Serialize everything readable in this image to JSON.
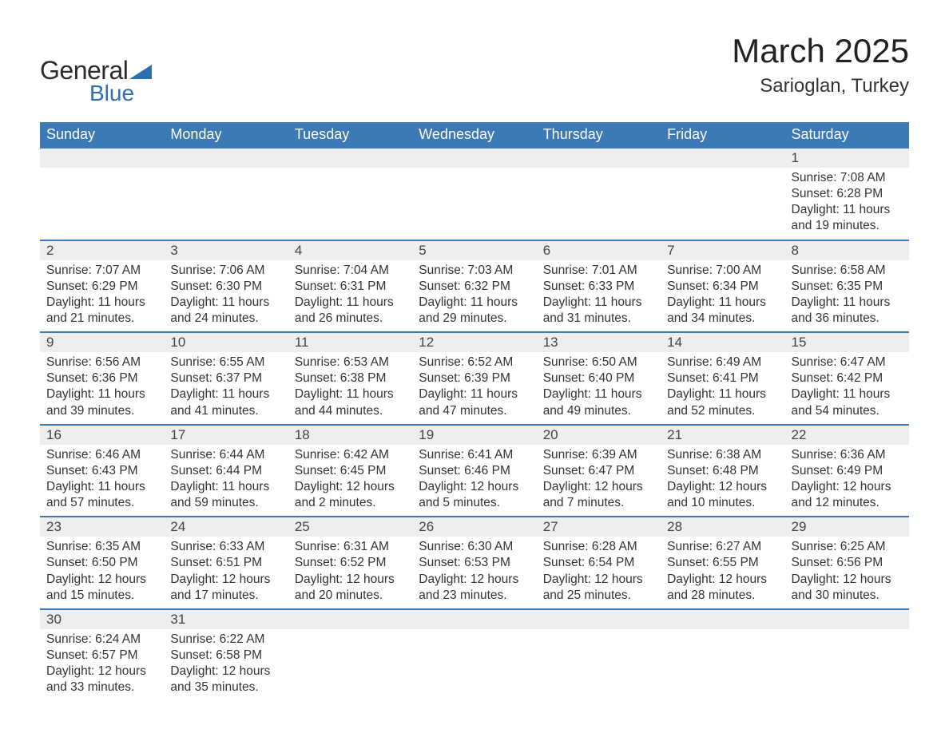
{
  "logo": {
    "text_general": "General",
    "text_blue": "Blue"
  },
  "title": {
    "month": "March 2025",
    "location": "Sarioglan, Turkey"
  },
  "colors": {
    "header_bg": "#3b79b7",
    "header_text": "#ffffff",
    "daynum_bg": "#eeeeee",
    "border": "#3b79b7",
    "text": "#333333",
    "logo_accent": "#2f6faf"
  },
  "daysOfWeek": [
    "Sunday",
    "Monday",
    "Tuesday",
    "Wednesday",
    "Thursday",
    "Friday",
    "Saturday"
  ],
  "weeks": [
    [
      null,
      null,
      null,
      null,
      null,
      null,
      {
        "n": "1",
        "sunrise": "Sunrise: 7:08 AM",
        "sunset": "Sunset: 6:28 PM",
        "dl1": "Daylight: 11 hours",
        "dl2": "and 19 minutes."
      }
    ],
    [
      {
        "n": "2",
        "sunrise": "Sunrise: 7:07 AM",
        "sunset": "Sunset: 6:29 PM",
        "dl1": "Daylight: 11 hours",
        "dl2": "and 21 minutes."
      },
      {
        "n": "3",
        "sunrise": "Sunrise: 7:06 AM",
        "sunset": "Sunset: 6:30 PM",
        "dl1": "Daylight: 11 hours",
        "dl2": "and 24 minutes."
      },
      {
        "n": "4",
        "sunrise": "Sunrise: 7:04 AM",
        "sunset": "Sunset: 6:31 PM",
        "dl1": "Daylight: 11 hours",
        "dl2": "and 26 minutes."
      },
      {
        "n": "5",
        "sunrise": "Sunrise: 7:03 AM",
        "sunset": "Sunset: 6:32 PM",
        "dl1": "Daylight: 11 hours",
        "dl2": "and 29 minutes."
      },
      {
        "n": "6",
        "sunrise": "Sunrise: 7:01 AM",
        "sunset": "Sunset: 6:33 PM",
        "dl1": "Daylight: 11 hours",
        "dl2": "and 31 minutes."
      },
      {
        "n": "7",
        "sunrise": "Sunrise: 7:00 AM",
        "sunset": "Sunset: 6:34 PM",
        "dl1": "Daylight: 11 hours",
        "dl2": "and 34 minutes."
      },
      {
        "n": "8",
        "sunrise": "Sunrise: 6:58 AM",
        "sunset": "Sunset: 6:35 PM",
        "dl1": "Daylight: 11 hours",
        "dl2": "and 36 minutes."
      }
    ],
    [
      {
        "n": "9",
        "sunrise": "Sunrise: 6:56 AM",
        "sunset": "Sunset: 6:36 PM",
        "dl1": "Daylight: 11 hours",
        "dl2": "and 39 minutes."
      },
      {
        "n": "10",
        "sunrise": "Sunrise: 6:55 AM",
        "sunset": "Sunset: 6:37 PM",
        "dl1": "Daylight: 11 hours",
        "dl2": "and 41 minutes."
      },
      {
        "n": "11",
        "sunrise": "Sunrise: 6:53 AM",
        "sunset": "Sunset: 6:38 PM",
        "dl1": "Daylight: 11 hours",
        "dl2": "and 44 minutes."
      },
      {
        "n": "12",
        "sunrise": "Sunrise: 6:52 AM",
        "sunset": "Sunset: 6:39 PM",
        "dl1": "Daylight: 11 hours",
        "dl2": "and 47 minutes."
      },
      {
        "n": "13",
        "sunrise": "Sunrise: 6:50 AM",
        "sunset": "Sunset: 6:40 PM",
        "dl1": "Daylight: 11 hours",
        "dl2": "and 49 minutes."
      },
      {
        "n": "14",
        "sunrise": "Sunrise: 6:49 AM",
        "sunset": "Sunset: 6:41 PM",
        "dl1": "Daylight: 11 hours",
        "dl2": "and 52 minutes."
      },
      {
        "n": "15",
        "sunrise": "Sunrise: 6:47 AM",
        "sunset": "Sunset: 6:42 PM",
        "dl1": "Daylight: 11 hours",
        "dl2": "and 54 minutes."
      }
    ],
    [
      {
        "n": "16",
        "sunrise": "Sunrise: 6:46 AM",
        "sunset": "Sunset: 6:43 PM",
        "dl1": "Daylight: 11 hours",
        "dl2": "and 57 minutes."
      },
      {
        "n": "17",
        "sunrise": "Sunrise: 6:44 AM",
        "sunset": "Sunset: 6:44 PM",
        "dl1": "Daylight: 11 hours",
        "dl2": "and 59 minutes."
      },
      {
        "n": "18",
        "sunrise": "Sunrise: 6:42 AM",
        "sunset": "Sunset: 6:45 PM",
        "dl1": "Daylight: 12 hours",
        "dl2": "and 2 minutes."
      },
      {
        "n": "19",
        "sunrise": "Sunrise: 6:41 AM",
        "sunset": "Sunset: 6:46 PM",
        "dl1": "Daylight: 12 hours",
        "dl2": "and 5 minutes."
      },
      {
        "n": "20",
        "sunrise": "Sunrise: 6:39 AM",
        "sunset": "Sunset: 6:47 PM",
        "dl1": "Daylight: 12 hours",
        "dl2": "and 7 minutes."
      },
      {
        "n": "21",
        "sunrise": "Sunrise: 6:38 AM",
        "sunset": "Sunset: 6:48 PM",
        "dl1": "Daylight: 12 hours",
        "dl2": "and 10 minutes."
      },
      {
        "n": "22",
        "sunrise": "Sunrise: 6:36 AM",
        "sunset": "Sunset: 6:49 PM",
        "dl1": "Daylight: 12 hours",
        "dl2": "and 12 minutes."
      }
    ],
    [
      {
        "n": "23",
        "sunrise": "Sunrise: 6:35 AM",
        "sunset": "Sunset: 6:50 PM",
        "dl1": "Daylight: 12 hours",
        "dl2": "and 15 minutes."
      },
      {
        "n": "24",
        "sunrise": "Sunrise: 6:33 AM",
        "sunset": "Sunset: 6:51 PM",
        "dl1": "Daylight: 12 hours",
        "dl2": "and 17 minutes."
      },
      {
        "n": "25",
        "sunrise": "Sunrise: 6:31 AM",
        "sunset": "Sunset: 6:52 PM",
        "dl1": "Daylight: 12 hours",
        "dl2": "and 20 minutes."
      },
      {
        "n": "26",
        "sunrise": "Sunrise: 6:30 AM",
        "sunset": "Sunset: 6:53 PM",
        "dl1": "Daylight: 12 hours",
        "dl2": "and 23 minutes."
      },
      {
        "n": "27",
        "sunrise": "Sunrise: 6:28 AM",
        "sunset": "Sunset: 6:54 PM",
        "dl1": "Daylight: 12 hours",
        "dl2": "and 25 minutes."
      },
      {
        "n": "28",
        "sunrise": "Sunrise: 6:27 AM",
        "sunset": "Sunset: 6:55 PM",
        "dl1": "Daylight: 12 hours",
        "dl2": "and 28 minutes."
      },
      {
        "n": "29",
        "sunrise": "Sunrise: 6:25 AM",
        "sunset": "Sunset: 6:56 PM",
        "dl1": "Daylight: 12 hours",
        "dl2": "and 30 minutes."
      }
    ],
    [
      {
        "n": "30",
        "sunrise": "Sunrise: 6:24 AM",
        "sunset": "Sunset: 6:57 PM",
        "dl1": "Daylight: 12 hours",
        "dl2": "and 33 minutes."
      },
      {
        "n": "31",
        "sunrise": "Sunrise: 6:22 AM",
        "sunset": "Sunset: 6:58 PM",
        "dl1": "Daylight: 12 hours",
        "dl2": "and 35 minutes."
      },
      null,
      null,
      null,
      null,
      null
    ]
  ]
}
